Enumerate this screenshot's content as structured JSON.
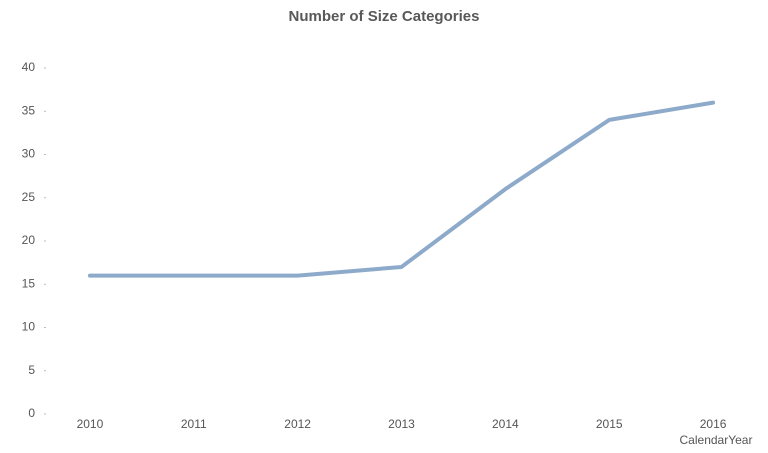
{
  "chart_data": {
    "type": "line",
    "title": "Number of Size Categories",
    "x_label": "CalendarYear",
    "categories": [
      "2010",
      "2011",
      "2012",
      "2013",
      "2014",
      "2015",
      "2016"
    ],
    "values": [
      16,
      16,
      16,
      17,
      26,
      34,
      36
    ],
    "color": "#8eaacb",
    "ylim": [
      0,
      40
    ],
    "yticks": [
      0,
      5,
      10,
      15,
      20,
      25,
      30,
      35,
      40
    ],
    "grid": false
  }
}
